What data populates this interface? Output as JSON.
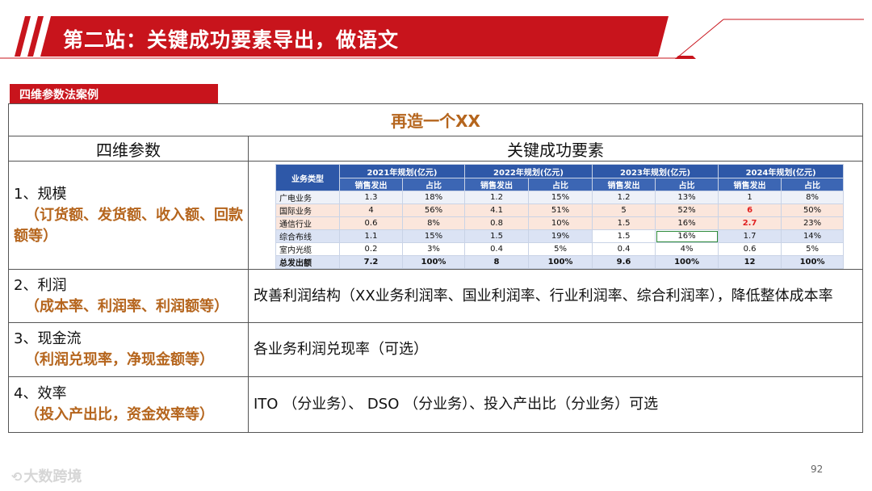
{
  "slide": {
    "title": "第二站：关键成功要素导出，做语文",
    "section_label": "四维参数法案例",
    "page_number": "92",
    "watermark_text": "大数跨境",
    "colors": {
      "brand_red": "#c8141c",
      "accent_brown": "#b5651d",
      "table_blue": "#2e58a8",
      "alert_red": "#e02020"
    }
  },
  "table": {
    "title": "再造一个XX",
    "col_left": "四维参数",
    "col_right": "关键成功要素",
    "rows": [
      {
        "label": "1、规模",
        "detail": "（订货额、发货额、收入额、回款额等）",
        "content": ""
      },
      {
        "label": "2、利润",
        "detail": "（成本率、利润率、利润额等）",
        "content": "改善利润结构（XX业务利润率、国业利润率、行业利润率、综合利润率），降低整体成本率"
      },
      {
        "label": "3、现金流",
        "detail": "（利润兑现率，净现金额等）",
        "content": "各业务利润兑现率（可选）"
      },
      {
        "label": "4、效率",
        "detail": "（投入产出比，资金效率等）",
        "content": "ITO （分业务）、 DSO （分业务）、投入产出比（分业务）可选"
      }
    ]
  },
  "inner_table": {
    "corner": "业务类型",
    "years": [
      "2021年规划(亿元)",
      "2022年规划(亿元)",
      "2023年规划(亿元)",
      "2024年规划(亿元)"
    ],
    "sub": [
      "销售发出",
      "占比"
    ],
    "rows": [
      {
        "name": "广电业务",
        "cells": [
          "1.3",
          "18%",
          "1.2",
          "15%",
          "1.2",
          "13%",
          "1",
          "8%"
        ]
      },
      {
        "name": "国际业务",
        "cells": [
          "4",
          "56%",
          "4.1",
          "51%",
          "5",
          "52%",
          "6",
          "50%"
        ]
      },
      {
        "name": "通信行业",
        "cells": [
          "0.6",
          "8%",
          "0.8",
          "10%",
          "1.5",
          "16%",
          "2.7",
          "23%"
        ]
      },
      {
        "name": "综合布线",
        "cells": [
          "1.1",
          "15%",
          "1.5",
          "19%",
          "1.5",
          "16%",
          "1.7",
          "14%"
        ]
      },
      {
        "name": "室内光缆",
        "cells": [
          "0.2",
          "3%",
          "0.4",
          "5%",
          "0.4",
          "4%",
          "0.6",
          "5%"
        ]
      },
      {
        "name": "总发出额",
        "cells": [
          "7.2",
          "100%",
          "8",
          "100%",
          "9.6",
          "100%",
          "12",
          "100%"
        ]
      }
    ]
  }
}
